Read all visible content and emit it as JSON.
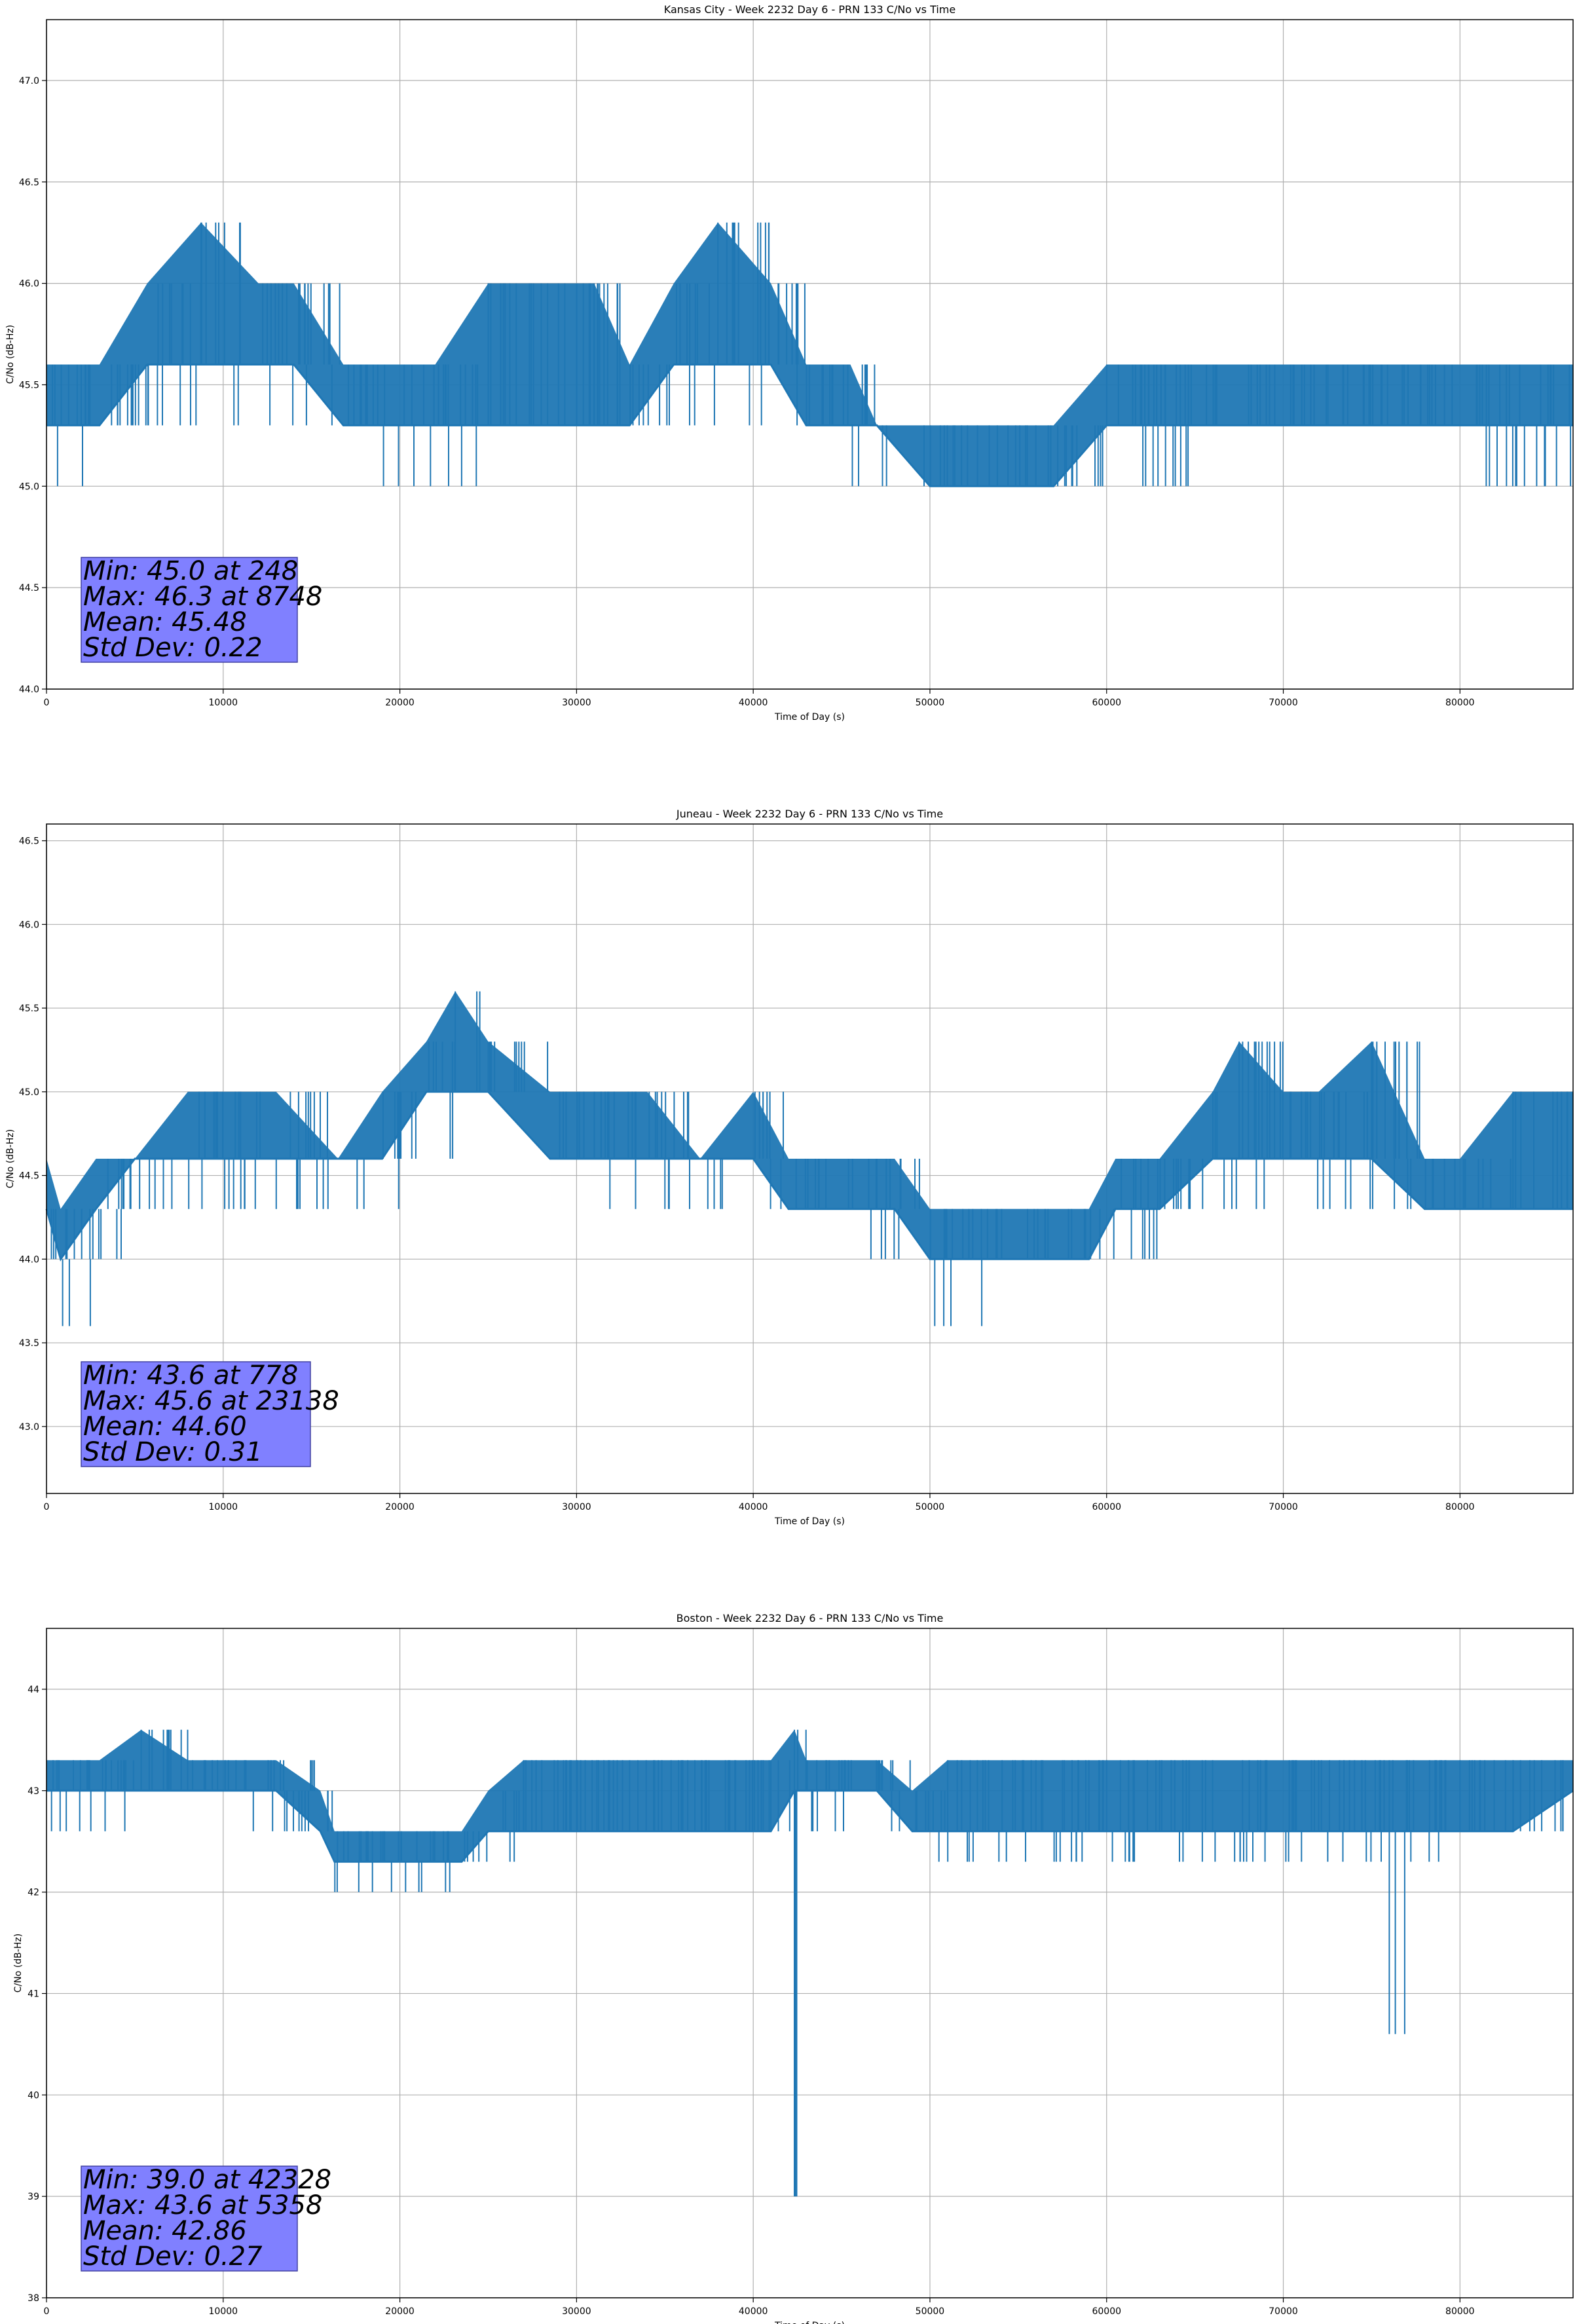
{
  "chart_data": [
    {
      "type": "line",
      "title": "Kansas City - Week 2232 Day 6 - PRN 133 C/No vs Time",
      "xlabel": "Time of Day (s)",
      "ylabel": "C/No (dB-Hz)",
      "xlim": [
        0,
        86400
      ],
      "ylim": [
        44.0,
        47.3
      ],
      "xticks": [
        0,
        10000,
        20000,
        30000,
        40000,
        50000,
        60000,
        70000,
        80000
      ],
      "yticks": [
        44.0,
        44.5,
        45.0,
        45.5,
        46.0,
        46.5,
        47.0
      ],
      "ytick_format": 1,
      "grid": true,
      "color": "#1f77b4",
      "stats_box": {
        "color": "#8080ff",
        "lines": [
          "Min: 45.0 at 248",
          "Max: 46.3 at 8748",
          "Mean: 45.48",
          "Std Dev: 0.22"
        ]
      },
      "series": [
        {
          "x": [
            0,
            3000,
            5700,
            8748,
            12000,
            14000,
            16800,
            19000,
            22000,
            25000,
            28000,
            31000,
            33000,
            35500,
            38000,
            41000,
            43000,
            45500,
            47000,
            50000,
            53000,
            57000,
            60000,
            63000,
            66000,
            69000,
            72000,
            75000,
            78000,
            79500,
            83000,
            86400
          ],
          "level": [
            45.3,
            45.3,
            45.6,
            45.6,
            45.6,
            45.6,
            45.3,
            45.3,
            45.3,
            45.3,
            45.3,
            45.3,
            45.3,
            45.6,
            45.6,
            45.6,
            45.3,
            45.3,
            45.3,
            45.0,
            45.0,
            45.0,
            45.3,
            45.3,
            45.3,
            45.3,
            45.3,
            45.3,
            45.3,
            45.3,
            45.3,
            45.3
          ],
          "high": [
            45.6,
            45.6,
            46.0,
            46.3,
            46.0,
            46.0,
            45.6,
            45.6,
            45.6,
            46.0,
            46.0,
            46.0,
            45.6,
            46.0,
            46.3,
            46.0,
            45.6,
            45.6,
            45.3,
            45.3,
            45.3,
            45.3,
            45.6,
            45.6,
            45.6,
            45.6,
            45.6,
            45.6,
            45.6,
            45.6,
            45.6,
            45.6
          ],
          "low": [
            45.0,
            45.0,
            45.3,
            45.3,
            45.3,
            45.3,
            45.3,
            45.0,
            45.0,
            45.3,
            45.3,
            45.3,
            45.3,
            45.3,
            45.3,
            45.3,
            45.3,
            45.0,
            45.0,
            45.0,
            45.0,
            45.0,
            45.0,
            45.0,
            45.3,
            45.3,
            45.3,
            45.3,
            45.3,
            45.0,
            45.0,
            45.0
          ]
        }
      ]
    },
    {
      "type": "line",
      "title": "Juneau - Week 2232 Day 6 - PRN 133 C/No vs Time",
      "xlabel": "Time of Day (s)",
      "ylabel": "C/No (dB-Hz)",
      "xlim": [
        0,
        86400
      ],
      "ylim": [
        42.6,
        46.6
      ],
      "xticks": [
        0,
        10000,
        20000,
        30000,
        40000,
        50000,
        60000,
        70000,
        80000
      ],
      "yticks": [
        43.0,
        43.5,
        44.0,
        44.5,
        45.0,
        45.5,
        46.0,
        46.5
      ],
      "ytick_format": 1,
      "grid": true,
      "color": "#1f77b4",
      "stats_box": {
        "color": "#8080ff",
        "lines": [
          "Min: 43.6 at 778",
          "Max: 45.6 at 23138",
          "Mean: 44.60",
          "Std Dev: 0.31"
        ]
      },
      "series": [
        {
          "x": [
            0,
            800,
            2800,
            5000,
            8000,
            10000,
            13000,
            16500,
            19000,
            21500,
            23138,
            25000,
            28500,
            31000,
            34000,
            37000,
            40000,
            42000,
            45000,
            48000,
            50000,
            53000,
            55500,
            57000,
            59000,
            60500,
            63000,
            66000,
            67500,
            70000,
            72000,
            75000,
            78000,
            80000,
            83000,
            86400
          ],
          "level": [
            44.3,
            44.0,
            44.3,
            44.6,
            44.6,
            44.6,
            44.6,
            44.6,
            44.6,
            45.0,
            45.0,
            45.0,
            44.6,
            44.6,
            44.6,
            44.6,
            44.6,
            44.3,
            44.3,
            44.3,
            44.0,
            44.0,
            44.0,
            44.0,
            44.0,
            44.3,
            44.3,
            44.6,
            44.6,
            44.6,
            44.6,
            44.6,
            44.3,
            44.3,
            44.3,
            44.3
          ],
          "high": [
            44.6,
            44.3,
            44.6,
            44.6,
            45.0,
            45.0,
            45.0,
            44.6,
            45.0,
            45.3,
            45.6,
            45.3,
            45.0,
            45.0,
            45.0,
            44.6,
            45.0,
            44.6,
            44.6,
            44.6,
            44.3,
            44.3,
            44.3,
            44.3,
            44.3,
            44.6,
            44.6,
            45.0,
            45.3,
            45.0,
            45.0,
            45.3,
            44.6,
            44.6,
            45.0,
            45.0
          ],
          "low": [
            44.0,
            43.6,
            44.0,
            44.3,
            44.3,
            44.3,
            44.3,
            44.3,
            44.3,
            44.6,
            45.0,
            45.0,
            44.6,
            44.3,
            44.3,
            44.3,
            44.3,
            44.3,
            44.0,
            44.0,
            43.6,
            44.0,
            43.6,
            44.0,
            44.0,
            44.0,
            44.3,
            44.3,
            44.3,
            44.3,
            44.3,
            44.3,
            44.3,
            44.3,
            44.3,
            44.3
          ]
        }
      ]
    },
    {
      "type": "line",
      "title": "Boston - Week 2232 Day 6 - PRN 133 C/No vs Time",
      "xlabel": "Time of Day (s)",
      "ylabel": "C/No (dB-Hz)",
      "xlim": [
        0,
        86400
      ],
      "ylim": [
        38,
        44.6
      ],
      "xticks": [
        0,
        10000,
        20000,
        30000,
        40000,
        50000,
        60000,
        70000,
        80000
      ],
      "yticks": [
        38,
        39,
        40,
        41,
        42,
        43,
        44
      ],
      "ytick_format": 0,
      "grid": true,
      "color": "#1f77b4",
      "stats_box": {
        "color": "#8080ff",
        "lines": [
          "Min: 39.0 at 42328",
          "Max: 43.6 at 5358",
          "Mean: 42.86",
          "Std Dev: 0.27"
        ]
      },
      "series": [
        {
          "x": [
            0,
            3000,
            5358,
            8000,
            11000,
            13000,
            15500,
            16300,
            18000,
            19500,
            21500,
            23500,
            25000,
            27000,
            30000,
            33000,
            36000,
            39000,
            41000,
            42328,
            43000,
            45000,
            47000,
            49000,
            51000,
            53000,
            56000,
            60000,
            63000,
            66000,
            69000,
            72000,
            75500,
            76000,
            77000,
            80000,
            83000,
            86400
          ],
          "level": [
            43.0,
            43.0,
            43.0,
            43.0,
            43.0,
            43.0,
            42.6,
            42.3,
            42.3,
            42.3,
            42.3,
            42.3,
            42.6,
            42.6,
            42.6,
            42.6,
            42.6,
            42.6,
            42.6,
            43.0,
            43.0,
            43.0,
            43.0,
            42.6,
            42.6,
            42.6,
            42.6,
            42.6,
            42.6,
            42.6,
            42.6,
            42.6,
            42.6,
            42.6,
            42.6,
            42.6,
            42.6,
            43.0
          ],
          "high": [
            43.3,
            43.3,
            43.6,
            43.3,
            43.3,
            43.3,
            43.0,
            42.6,
            42.6,
            42.6,
            42.6,
            42.6,
            43.0,
            43.3,
            43.3,
            43.3,
            43.3,
            43.3,
            43.3,
            43.6,
            43.3,
            43.3,
            43.3,
            43.0,
            43.3,
            43.3,
            43.3,
            43.3,
            43.3,
            43.3,
            43.3,
            43.3,
            43.3,
            43.3,
            43.3,
            43.3,
            43.3,
            43.3
          ],
          "low": [
            42.6,
            42.6,
            43.0,
            43.0,
            42.6,
            42.6,
            42.3,
            42.0,
            42.0,
            42.0,
            42.0,
            42.3,
            42.3,
            42.6,
            42.6,
            42.6,
            42.6,
            42.6,
            42.6,
            39.0,
            42.6,
            42.6,
            42.6,
            42.3,
            42.3,
            42.3,
            42.3,
            42.3,
            42.3,
            42.3,
            42.3,
            42.3,
            42.3,
            40.6,
            42.3,
            42.6,
            42.6,
            42.6
          ]
        }
      ]
    }
  ]
}
